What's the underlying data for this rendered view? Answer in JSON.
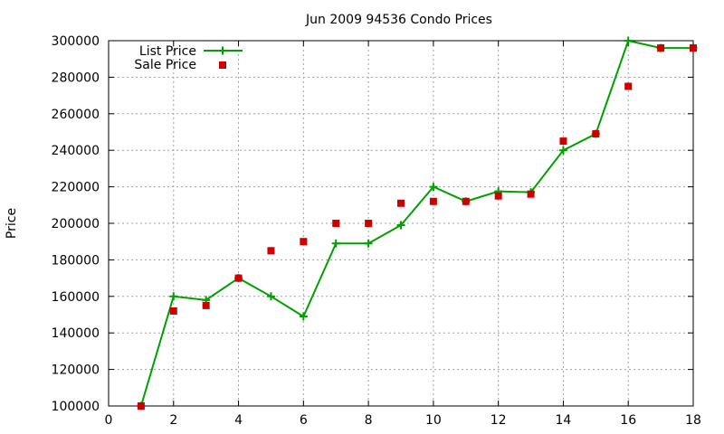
{
  "chart_data": {
    "type": "line",
    "title": "Jun 2009 94536 Condo Prices",
    "xlabel": "",
    "ylabel": "Price",
    "xlim": [
      0,
      18
    ],
    "ylim": [
      100000,
      300000
    ],
    "xticks": [
      0,
      2,
      4,
      6,
      8,
      10,
      12,
      14,
      16,
      18
    ],
    "yticks": [
      100000,
      120000,
      140000,
      160000,
      180000,
      200000,
      220000,
      240000,
      260000,
      280000,
      300000
    ],
    "grid": true,
    "legend_position": "top-left",
    "series": [
      {
        "name": "List Price",
        "style": "lines+points",
        "marker": "plus",
        "color": "#00a000",
        "x": [
          1,
          2,
          3,
          4,
          5,
          6,
          7,
          8,
          9,
          10,
          11,
          12,
          13,
          14,
          15,
          16,
          17,
          18
        ],
        "y": [
          100000,
          160000,
          158000,
          170000,
          160000,
          149000,
          189000,
          189000,
          199000,
          220000,
          212000,
          217500,
          217000,
          240000,
          249000,
          300000,
          296000,
          296000
        ]
      },
      {
        "name": "Sale Price",
        "style": "points",
        "marker": "square",
        "color": "#cc0000",
        "x": [
          1,
          2,
          3,
          4,
          5,
          6,
          7,
          8,
          9,
          10,
          11,
          12,
          13,
          14,
          15,
          16,
          17,
          18
        ],
        "y": [
          100000,
          152000,
          155000,
          170000,
          185000,
          190000,
          200000,
          200000,
          211000,
          212000,
          212000,
          215000,
          216000,
          245000,
          249000,
          275000,
          296000,
          296000
        ]
      }
    ]
  }
}
